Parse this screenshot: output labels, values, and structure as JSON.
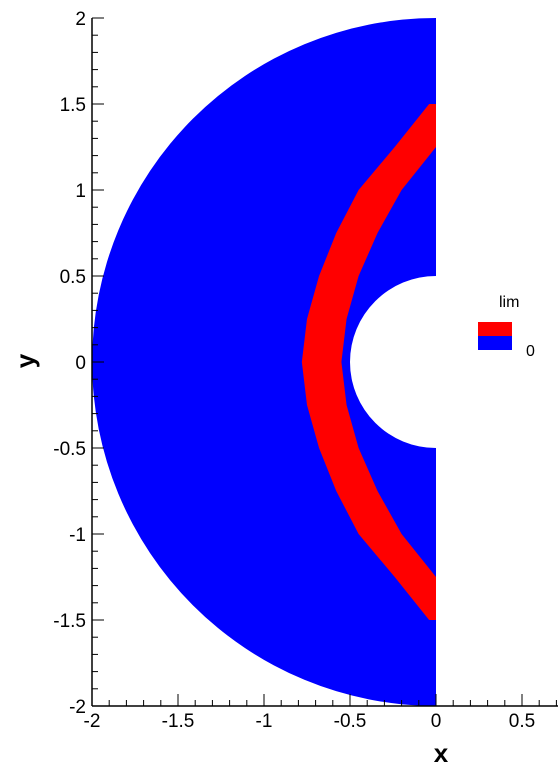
{
  "chart_data": {
    "type": "contour",
    "xlabel": "x",
    "ylabel": "y",
    "xlim": [
      -2,
      0.7
    ],
    "ylim": [
      -2,
      2
    ],
    "x_ticks": [
      {
        "value": -2,
        "label": "-2"
      },
      {
        "value": -1.5,
        "label": "-1.5"
      },
      {
        "value": -1,
        "label": "-1"
      },
      {
        "value": -0.5,
        "label": "-0.5"
      },
      {
        "value": 0,
        "label": "0"
      },
      {
        "value": 0.5,
        "label": "0.5"
      }
    ],
    "y_ticks": [
      {
        "value": 2,
        "label": "2"
      },
      {
        "value": 1.5,
        "label": "1.5"
      },
      {
        "value": 1,
        "label": "1"
      },
      {
        "value": 0.5,
        "label": "0.5"
      },
      {
        "value": 0,
        "label": "0"
      },
      {
        "value": -0.5,
        "label": "-0.5"
      },
      {
        "value": -1,
        "label": "-1"
      },
      {
        "value": -1.5,
        "label": "-1.5"
      },
      {
        "value": -2,
        "label": "-2"
      }
    ],
    "domain": {
      "shape": "half-annulus",
      "inner_radius": 0.5,
      "outer_radius": 2,
      "side": "x<=0"
    },
    "field_name": "lim",
    "background_color": "#0000ff",
    "band_color": "#ff0000",
    "band": [
      {
        "y": -1.5,
        "x_inner": -0.04,
        "x_outer": 0
      },
      {
        "y": -1.25,
        "x_inner": -0.24,
        "x_outer": 0
      },
      {
        "y": -1.0,
        "x_inner": -0.45,
        "x_outer": -0.2
      },
      {
        "y": -0.75,
        "x_inner": -0.58,
        "x_outer": -0.34
      },
      {
        "y": -0.5,
        "x_inner": -0.68,
        "x_outer": -0.45
      },
      {
        "y": -0.25,
        "x_inner": -0.75,
        "x_outer": -0.52
      },
      {
        "y": 0.0,
        "x_inner": -0.78,
        "x_outer": -0.55
      },
      {
        "y": 0.25,
        "x_inner": -0.75,
        "x_outer": -0.52
      },
      {
        "y": 0.5,
        "x_inner": -0.68,
        "x_outer": -0.45
      },
      {
        "y": 0.75,
        "x_inner": -0.58,
        "x_outer": -0.34
      },
      {
        "y": 1.0,
        "x_inner": -0.45,
        "x_outer": -0.2
      },
      {
        "y": 1.25,
        "x_inner": -0.24,
        "x_outer": 0
      },
      {
        "y": 1.5,
        "x_inner": -0.04,
        "x_outer": 0
      }
    ],
    "legend": {
      "title": "lim",
      "placement": "right",
      "entries": [
        {
          "color": "#ff0000",
          "label": ""
        },
        {
          "color": "#0000ff",
          "label": "0"
        }
      ]
    }
  }
}
